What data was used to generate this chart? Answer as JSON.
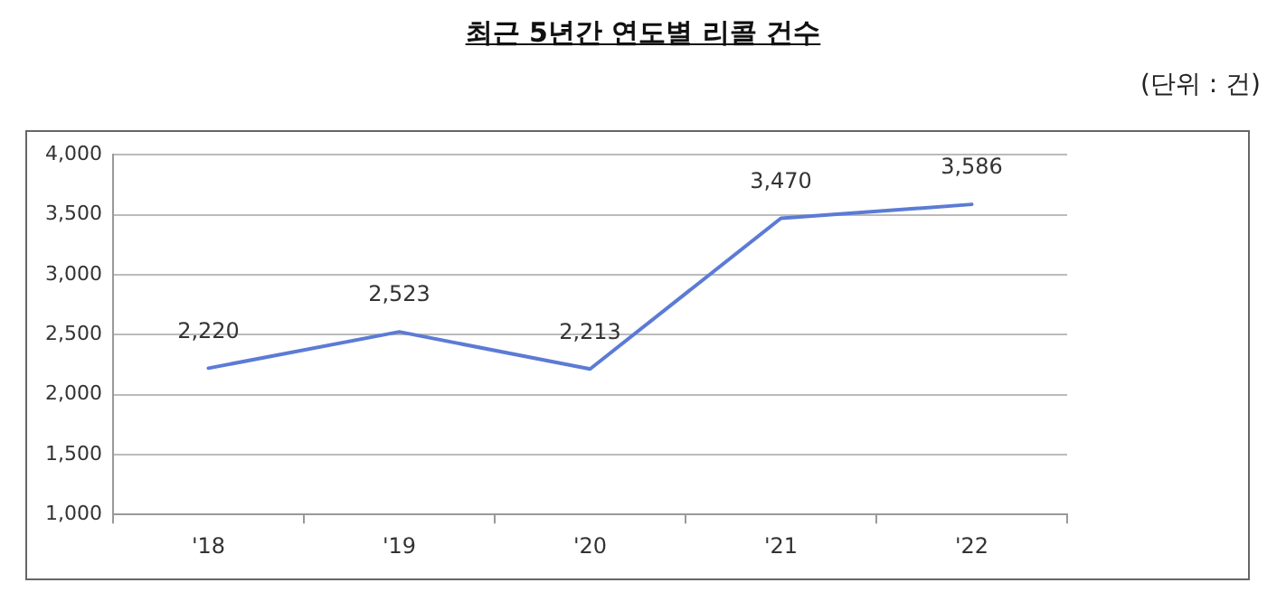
{
  "chart_data": {
    "type": "line",
    "title": "최근 5년간 연도별 리콜 건수",
    "annotations": [
      "(단위 : 건)"
    ],
    "categories": [
      "'18",
      "'19",
      "'20",
      "'21",
      "'22"
    ],
    "series": [
      {
        "color": "#5b7bd5",
        "values": [
          2220,
          2523,
          2213,
          3470,
          3586
        ],
        "value_labels": [
          "2,220",
          "2,523",
          "2,213",
          "3,470",
          "3,586"
        ]
      }
    ],
    "ylim": [
      1000,
      4000
    ],
    "yticks": [
      {
        "value": 1000,
        "label": "1,000"
      },
      {
        "value": 1500,
        "label": "1,500"
      },
      {
        "value": 2000,
        "label": "2,000"
      },
      {
        "value": 2500,
        "label": "2,500"
      },
      {
        "value": 3000,
        "label": "3,000"
      },
      {
        "value": 3500,
        "label": "3,500"
      },
      {
        "value": 4000,
        "label": "4,000"
      }
    ],
    "grid": "y",
    "legend": false,
    "marker": "none",
    "line_style": "solid"
  }
}
